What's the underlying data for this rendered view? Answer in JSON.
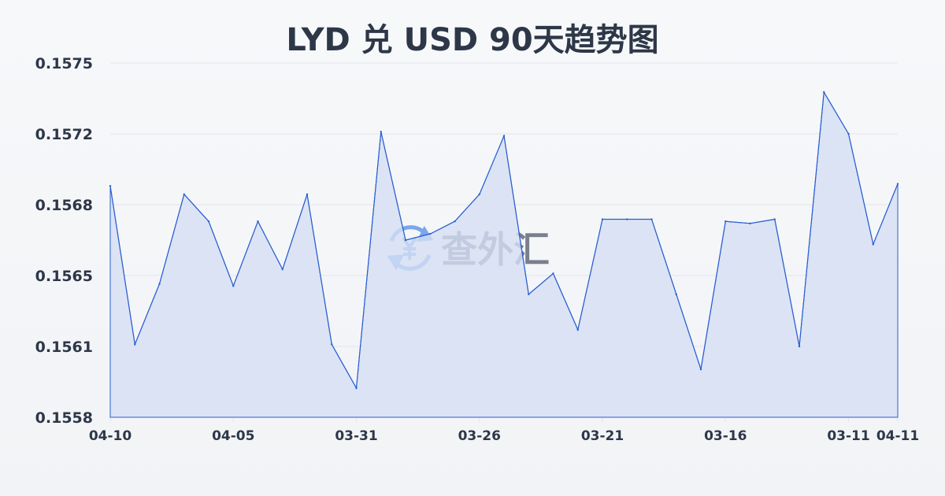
{
  "title": "LYD 兑 USD 90天趋势图",
  "watermark": {
    "text": "查外汇",
    "icon": "yen-exchange-icon"
  },
  "colors": {
    "line": "#2a5fd0",
    "fill": "#d4def4",
    "grid": "#e3e6ea",
    "text": "#2d3748",
    "watermark_icon": "#7aa6ee",
    "watermark_text": "#6b7280"
  },
  "chart_data": {
    "type": "area",
    "title": "LYD 兑 USD 90天趋势图",
    "xlabel": "",
    "ylabel": "",
    "ylim": [
      0.1558,
      0.1575
    ],
    "grid": true,
    "y_ticks": [
      "0.1558",
      "0.1561",
      "0.1565",
      "0.1568",
      "0.1572",
      "0.1575"
    ],
    "x_tick_labels": [
      {
        "index": 0,
        "label": "04-10"
      },
      {
        "index": 5,
        "label": "04-05"
      },
      {
        "index": 10,
        "label": "03-31"
      },
      {
        "index": 15,
        "label": "03-26"
      },
      {
        "index": 20,
        "label": "03-21"
      },
      {
        "index": 25,
        "label": "03-16"
      },
      {
        "index": 30,
        "label": "03-11"
      },
      {
        "index": 32,
        "label": "04-11"
      }
    ],
    "values": [
      0.15691,
      0.15615,
      0.15644,
      0.15687,
      0.15674,
      0.15643,
      0.15674,
      0.15651,
      0.15687,
      0.15615,
      0.15594,
      0.15717,
      0.15665,
      0.15668,
      0.15674,
      0.15687,
      0.15715,
      0.15639,
      0.15649,
      0.15622,
      0.15675,
      0.15675,
      0.15675,
      0.15639,
      0.15603,
      0.15674,
      0.15673,
      0.15675,
      0.15614,
      0.15736,
      0.15716,
      0.15663,
      0.15692
    ]
  }
}
